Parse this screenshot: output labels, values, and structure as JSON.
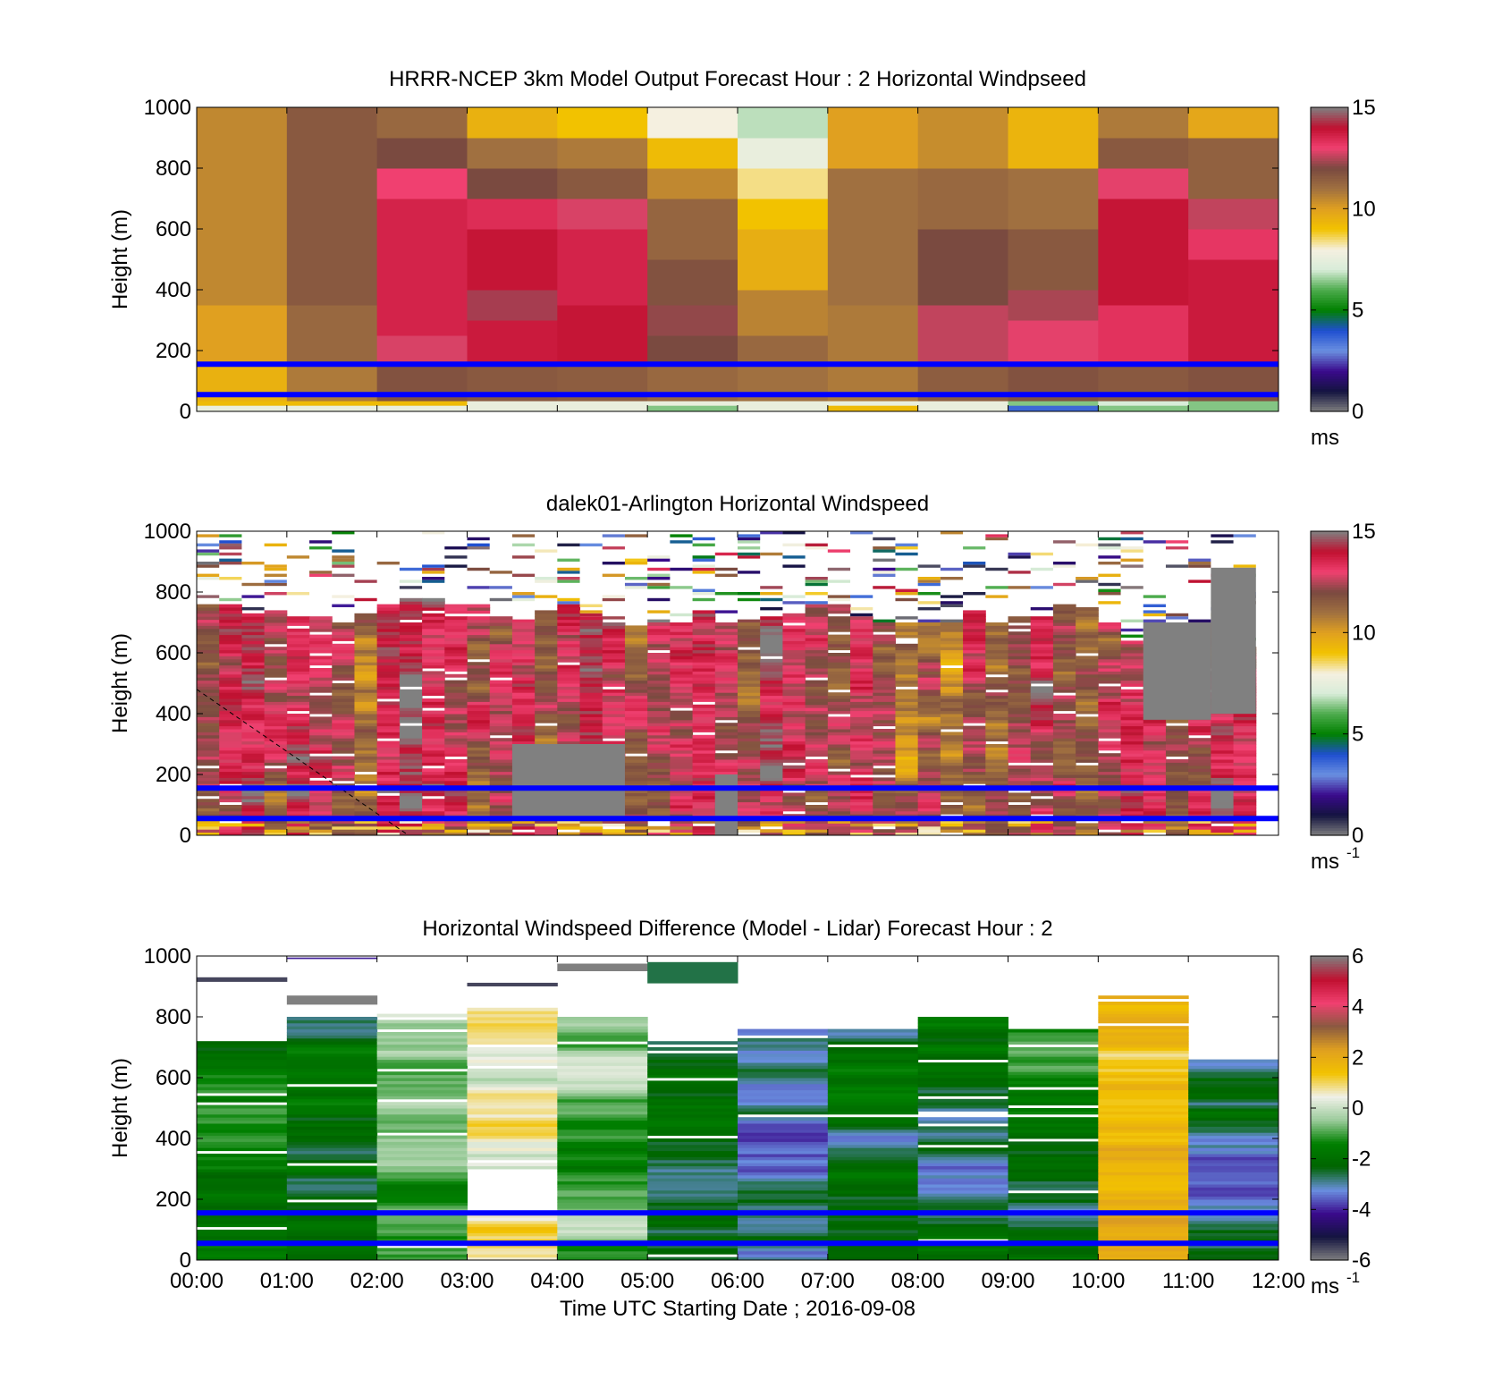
{
  "chart_data": [
    {
      "type": "heatmap",
      "title": "HRRR-NCEP 3km Model Output   Forecast Hour : 2 Horizontal Windpseed",
      "ylabel": "Height (m)",
      "ylim": [
        0,
        1000
      ],
      "yticks": [
        "0",
        "200",
        "400",
        "600",
        "800",
        "1000"
      ],
      "xlim": [
        0,
        12
      ],
      "colorbar": {
        "label": "ms",
        "label_sup": "",
        "ticks": [
          "0",
          "5",
          "10",
          "15"
        ],
        "range": [
          0,
          15
        ],
        "scale": "speed"
      },
      "blue_lines_m": [
        155,
        55
      ],
      "blocks": [
        {
          "x0": 0,
          "x1": 1,
          "cells": [
            [
              0,
              20,
              7.6
            ],
            [
              20,
              35,
              9.2
            ],
            [
              35,
              150,
              9.5
            ],
            [
              150,
              350,
              10
            ],
            [
              350,
              1000,
              10.5
            ]
          ]
        },
        {
          "x0": 1,
          "x1": 2,
          "cells": [
            [
              0,
              20,
              7.6
            ],
            [
              20,
              35,
              9.2
            ],
            [
              35,
              150,
              10.8
            ],
            [
              150,
              350,
              11.2
            ],
            [
              350,
              1000,
              11.6
            ]
          ]
        },
        {
          "x0": 2,
          "x1": 3,
          "cells": [
            [
              0,
              20,
              7.6
            ],
            [
              20,
              35,
              9.2
            ],
            [
              35,
              150,
              11.8
            ],
            [
              150,
              250,
              12.8
            ],
            [
              250,
              700,
              13.6
            ],
            [
              700,
              800,
              13.0
            ],
            [
              800,
              900,
              12.0
            ],
            [
              900,
              1000,
              11.2
            ]
          ]
        },
        {
          "x0": 3,
          "x1": 4,
          "cells": [
            [
              0,
              20,
              7.6
            ],
            [
              20,
              35,
              7.6
            ],
            [
              35,
              150,
              11.6
            ],
            [
              150,
              300,
              13.8
            ],
            [
              300,
              400,
              14.4
            ],
            [
              400,
              600,
              13.9
            ],
            [
              600,
              700,
              13.4
            ],
            [
              700,
              800,
              12.0
            ],
            [
              800,
              900,
              11.0
            ],
            [
              900,
              1000,
              9.5
            ]
          ]
        },
        {
          "x0": 4,
          "x1": 5,
          "cells": [
            [
              0,
              20,
              7.6
            ],
            [
              20,
              35,
              7.6
            ],
            [
              35,
              150,
              11.5
            ],
            [
              150,
              350,
              13.9
            ],
            [
              350,
              600,
              13.6
            ],
            [
              600,
              700,
              12.8
            ],
            [
              700,
              800,
              11.6
            ],
            [
              800,
              900,
              10.8
            ],
            [
              900,
              1000,
              9.0
            ]
          ]
        },
        {
          "x0": 5,
          "x1": 6,
          "cells": [
            [
              0,
              20,
              6.4
            ],
            [
              20,
              35,
              7.6
            ],
            [
              35,
              150,
              11.2
            ],
            [
              150,
              250,
              12.0
            ],
            [
              250,
              350,
              12.2
            ],
            [
              350,
              500,
              11.8
            ],
            [
              500,
              700,
              11.3
            ],
            [
              700,
              800,
              10.5
            ],
            [
              800,
              900,
              9.2
            ],
            [
              900,
              1000,
              8.0
            ]
          ]
        },
        {
          "x0": 6,
          "x1": 7,
          "cells": [
            [
              0,
              20,
              7.6
            ],
            [
              20,
              35,
              7.6
            ],
            [
              35,
              150,
              11.0
            ],
            [
              150,
              250,
              11.2
            ],
            [
              250,
              400,
              10.6
            ],
            [
              400,
              600,
              9.6
            ],
            [
              600,
              700,
              9.0
            ],
            [
              700,
              800,
              8.4
            ],
            [
              800,
              900,
              7.6
            ],
            [
              900,
              1000,
              6.8
            ]
          ]
        },
        {
          "x0": 7,
          "x1": 8,
          "cells": [
            [
              0,
              20,
              9.2
            ],
            [
              20,
              35,
              7.6
            ],
            [
              35,
              150,
              10.8
            ],
            [
              150,
              350,
              10.8
            ],
            [
              350,
              800,
              11.0
            ],
            [
              800,
              1000,
              10.0
            ]
          ]
        },
        {
          "x0": 8,
          "x1": 9,
          "cells": [
            [
              0,
              20,
              7.6
            ],
            [
              20,
              35,
              7.6
            ],
            [
              35,
              150,
              11.5
            ],
            [
              150,
              350,
              12.6
            ],
            [
              350,
              600,
              12.0
            ],
            [
              600,
              800,
              11.2
            ],
            [
              800,
              1000,
              10.4
            ]
          ]
        },
        {
          "x0": 9,
          "x1": 10,
          "cells": [
            [
              0,
              20,
              3.6
            ],
            [
              20,
              35,
              6.4
            ],
            [
              35,
              150,
              11.8
            ],
            [
              150,
              300,
              12.9
            ],
            [
              300,
              400,
              12.4
            ],
            [
              400,
              600,
              11.6
            ],
            [
              600,
              800,
              11.0
            ],
            [
              800,
              1000,
              9.4
            ]
          ]
        },
        {
          "x0": 10,
          "x1": 11,
          "cells": [
            [
              0,
              20,
              6.4
            ],
            [
              20,
              35,
              7.0
            ],
            [
              35,
              150,
              11.6
            ],
            [
              150,
              350,
              13.3
            ],
            [
              350,
              700,
              13.9
            ],
            [
              700,
              800,
              12.9
            ],
            [
              800,
              900,
              11.6
            ],
            [
              900,
              1000,
              10.8
            ]
          ]
        },
        {
          "x0": 11,
          "x1": 12,
          "cells": [
            [
              0,
              20,
              6.4
            ],
            [
              20,
              35,
              6.4
            ],
            [
              35,
              150,
              11.8
            ],
            [
              150,
              500,
              13.8
            ],
            [
              500,
              600,
              13.2
            ],
            [
              600,
              700,
              12.6
            ],
            [
              700,
              900,
              11.4
            ],
            [
              900,
              1000,
              9.8
            ]
          ]
        }
      ]
    },
    {
      "type": "heatmap",
      "title": "dalek01-Arlington  Horizontal Windspeed",
      "ylabel": "Height (m)",
      "ylim": [
        0,
        1000
      ],
      "yticks": [
        "0",
        "200",
        "400",
        "600",
        "800",
        "1000"
      ],
      "xlim": [
        0,
        12
      ],
      "colorbar": {
        "label": "ms",
        "label_sup": "-1",
        "ticks": [
          "0",
          "5",
          "10",
          "15"
        ],
        "range": [
          0,
          15
        ],
        "scale": "speed"
      },
      "blue_lines_m": [
        155,
        55
      ],
      "profiles": {
        "start_h": 0,
        "step_h": 0.25,
        "n": 47,
        "tops": [
          760,
          760,
          740,
          740,
          730,
          720,
          700,
          740,
          760,
          780,
          780,
          760,
          760,
          720,
          700,
          740,
          760,
          720,
          700,
          700,
          700,
          700,
          740,
          700,
          700,
          720,
          730,
          760,
          760,
          720,
          700,
          700,
          700,
          700,
          740,
          700,
          720,
          720,
          760,
          760,
          700,
          640,
          620,
          640,
          700,
          700,
          620
        ],
        "base": [
          12.5,
          13.5,
          13.8,
          12.4,
          13.6,
          12.8,
          12.0,
          11.2,
          13.7,
          14.2,
          13.4,
          12.8,
          11.8,
          12.2,
          13.6,
          12.2,
          13.6,
          14.1,
          13.3,
          12.2,
          12.6,
          13.0,
          13.4,
          12.4,
          12.0,
          14.2,
          13.3,
          12.0,
          11.8,
          13.0,
          12.4,
          11.4,
          12.2,
          11.2,
          12.8,
          11.6,
          12.0,
          13.2,
          12.4,
          11.8,
          12.3,
          13.4,
          12.9,
          11.9,
          12.2,
          13.4,
          13.0
        ],
        "gaps": [
          {
            "x0": 5.75,
            "x1": 6.0,
            "h0": 0,
            "h1": 200
          },
          {
            "x0": 3.5,
            "x1": 4.75,
            "h0": 60,
            "h1": 300
          },
          {
            "x0": 10.5,
            "x1": 11.25,
            "h0": 380,
            "h1": 700
          },
          {
            "x0": 11.25,
            "x1": 11.75,
            "h0": 400,
            "h1": 880
          }
        ],
        "dashed_line": [
          [
            0,
            480
          ],
          [
            2.35,
            0
          ]
        ]
      }
    },
    {
      "type": "heatmap",
      "title": "Horizontal Windspeed Difference (Model - Lidar) Forecast Hour : 2",
      "xlabel": "Time UTC  Starting Date ; 2016-09-08",
      "ylabel": "Height (m)",
      "ylim": [
        0,
        1000
      ],
      "yticks": [
        "0",
        "200",
        "400",
        "600",
        "800",
        "1000"
      ],
      "xlim": [
        0,
        12
      ],
      "xticks": [
        "00:00",
        "01:00",
        "02:00",
        "03:00",
        "04:00",
        "05:00",
        "06:00",
        "07:00",
        "08:00",
        "09:00",
        "10:00",
        "11:00",
        "12:00"
      ],
      "colorbar": {
        "label": "ms",
        "label_sup": "-1",
        "ticks": [
          "-6",
          "-4",
          "-2",
          "0",
          "2",
          "4",
          "6"
        ],
        "range": [
          -6,
          6
        ],
        "scale": "diff"
      },
      "blue_lines_m": [
        155,
        55
      ],
      "blocks": [
        {
          "x0": 0,
          "x1": 1,
          "top": 720,
          "base": -1.5,
          "extras": [
            [
              915,
              930,
              -5.5
            ]
          ]
        },
        {
          "x0": 1,
          "x1": 2,
          "top": 800,
          "base": -2.0,
          "extras": [
            [
              840,
              870,
              -6.0
            ],
            [
              990,
              995,
              -4.0
            ]
          ]
        },
        {
          "x0": 2,
          "x1": 3,
          "top": 810,
          "base": -0.9
        },
        {
          "x0": 3,
          "x1": 4,
          "top": 840,
          "base": 0.6,
          "extras": [
            [
              900,
              912,
              -5.5
            ]
          ],
          "blank": [
            [
              160,
              300
            ]
          ]
        },
        {
          "x0": 4,
          "x1": 5,
          "top": 810,
          "base": -1.2,
          "extras": [
            [
              950,
              975,
              -6.0
            ]
          ]
        },
        {
          "x0": 5,
          "x1": 6,
          "top": 720,
          "base": -2.5,
          "extras": [
            [
              910,
              980,
              -2.6
            ]
          ]
        },
        {
          "x0": 6,
          "x1": 7,
          "top": 760,
          "base": -3.0
        },
        {
          "x0": 7,
          "x1": 8,
          "top": 760,
          "base": -2.4
        },
        {
          "x0": 8,
          "x1": 9,
          "top": 800,
          "base": -2.2
        },
        {
          "x0": 9,
          "x1": 10,
          "top": 760,
          "base": -1.8
        },
        {
          "x0": 10,
          "x1": 11,
          "top": 870,
          "base": 1.6
        },
        {
          "x0": 11,
          "x1": 12,
          "top": 660,
          "base": -2.6
        }
      ]
    }
  ],
  "colors": {
    "speed_stops": [
      "#808080",
      "#141440",
      "#3a0a8c",
      "#6a8fe0",
      "#1f4fd0",
      "#008000",
      "#4cab4c",
      "#d8ecd8",
      "#f5f0e0",
      "#f2c200",
      "#e0a020",
      "#a07040",
      "#7a4a40",
      "#f04070",
      "#c01030",
      "#808080"
    ],
    "diff_stops": [
      "#808080",
      "#141440",
      "#3a0a8c",
      "#6a8fe0",
      "#006400",
      "#008000",
      "#9ccc9c",
      "#f0f0e8",
      "#f2c200",
      "#e0a020",
      "#8a5a40",
      "#f04070",
      "#c01030",
      "#808080"
    ],
    "blue_line": "#0000ff"
  }
}
